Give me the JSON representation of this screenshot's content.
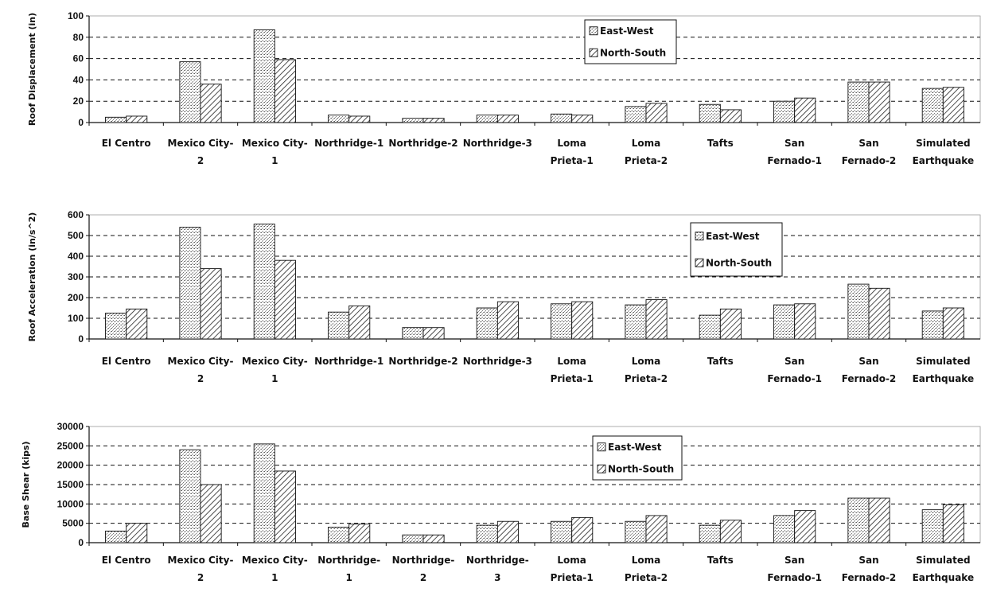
{
  "chart_data": [
    {
      "type": "bar",
      "ylabel": "Roof Displacement (in)",
      "ylim": [
        0,
        100
      ],
      "yticks": [
        0,
        20,
        40,
        60,
        80,
        100
      ],
      "categories": [
        "El Centro",
        "Mexico City-\n2",
        "Mexico City-\n1",
        "Northridge-1",
        "Northridge-2",
        "Northridge-3",
        "Loma\nPrieta-1",
        "Loma\nPrieta-2",
        "Tafts",
        "San\nFernado-1",
        "San\nFernado-2",
        "Simulated\nEarthquake"
      ],
      "series": [
        {
          "name": "East-West",
          "values": [
            5,
            57,
            87,
            7,
            4,
            7,
            8,
            15,
            17,
            20,
            38,
            32
          ]
        },
        {
          "name": "North-South",
          "values": [
            6,
            36,
            59,
            6,
            4,
            7,
            7,
            18,
            12,
            23,
            38,
            33
          ]
        }
      ],
      "legend": "top-right",
      "grid": true
    },
    {
      "type": "bar",
      "ylabel": "Roof Acceleration (in/s^2)",
      "ylim": [
        0,
        600
      ],
      "yticks": [
        0,
        100,
        200,
        300,
        400,
        500,
        600
      ],
      "categories": [
        "El Centro",
        "Mexico City-\n2",
        "Mexico City-\n1",
        "Northridge-1",
        "Northridge-2",
        "Northridge-3",
        "Loma\nPrieta-1",
        "Loma\nPrieta-2",
        "Tafts",
        "San\nFernado-1",
        "San\nFernado-2",
        "Simulated\nEarthquake"
      ],
      "series": [
        {
          "name": "East-West",
          "values": [
            125,
            540,
            555,
            130,
            55,
            150,
            170,
            165,
            115,
            165,
            265,
            135
          ]
        },
        {
          "name": "North-South",
          "values": [
            145,
            340,
            380,
            160,
            55,
            180,
            180,
            190,
            145,
            170,
            245,
            150
          ]
        }
      ],
      "legend": "right",
      "grid": true
    },
    {
      "type": "bar",
      "ylabel": "Base Shear (kips)",
      "ylim": [
        0,
        30000
      ],
      "yticks": [
        0,
        5000,
        10000,
        15000,
        20000,
        25000,
        30000
      ],
      "categories": [
        "El Centro",
        "Mexico City-\n2",
        "Mexico City-\n1",
        "Northridge-\n1",
        "Northridge-\n2",
        "Northridge-\n3",
        "Loma\nPrieta-1",
        "Loma\nPrieta-2",
        "Tafts",
        "San\nFernado-1",
        "San\nFernado-2",
        "Simulated\nEarthquake"
      ],
      "series": [
        {
          "name": "East-West",
          "values": [
            3000,
            24000,
            25500,
            4000,
            2000,
            4500,
            5500,
            5500,
            4500,
            7000,
            11500,
            8500
          ]
        },
        {
          "name": "North-South",
          "values": [
            5000,
            15000,
            18500,
            4800,
            2000,
            5500,
            6500,
            7000,
            5800,
            8300,
            11500,
            9800
          ]
        }
      ],
      "legend": "top-right",
      "grid": true
    }
  ]
}
